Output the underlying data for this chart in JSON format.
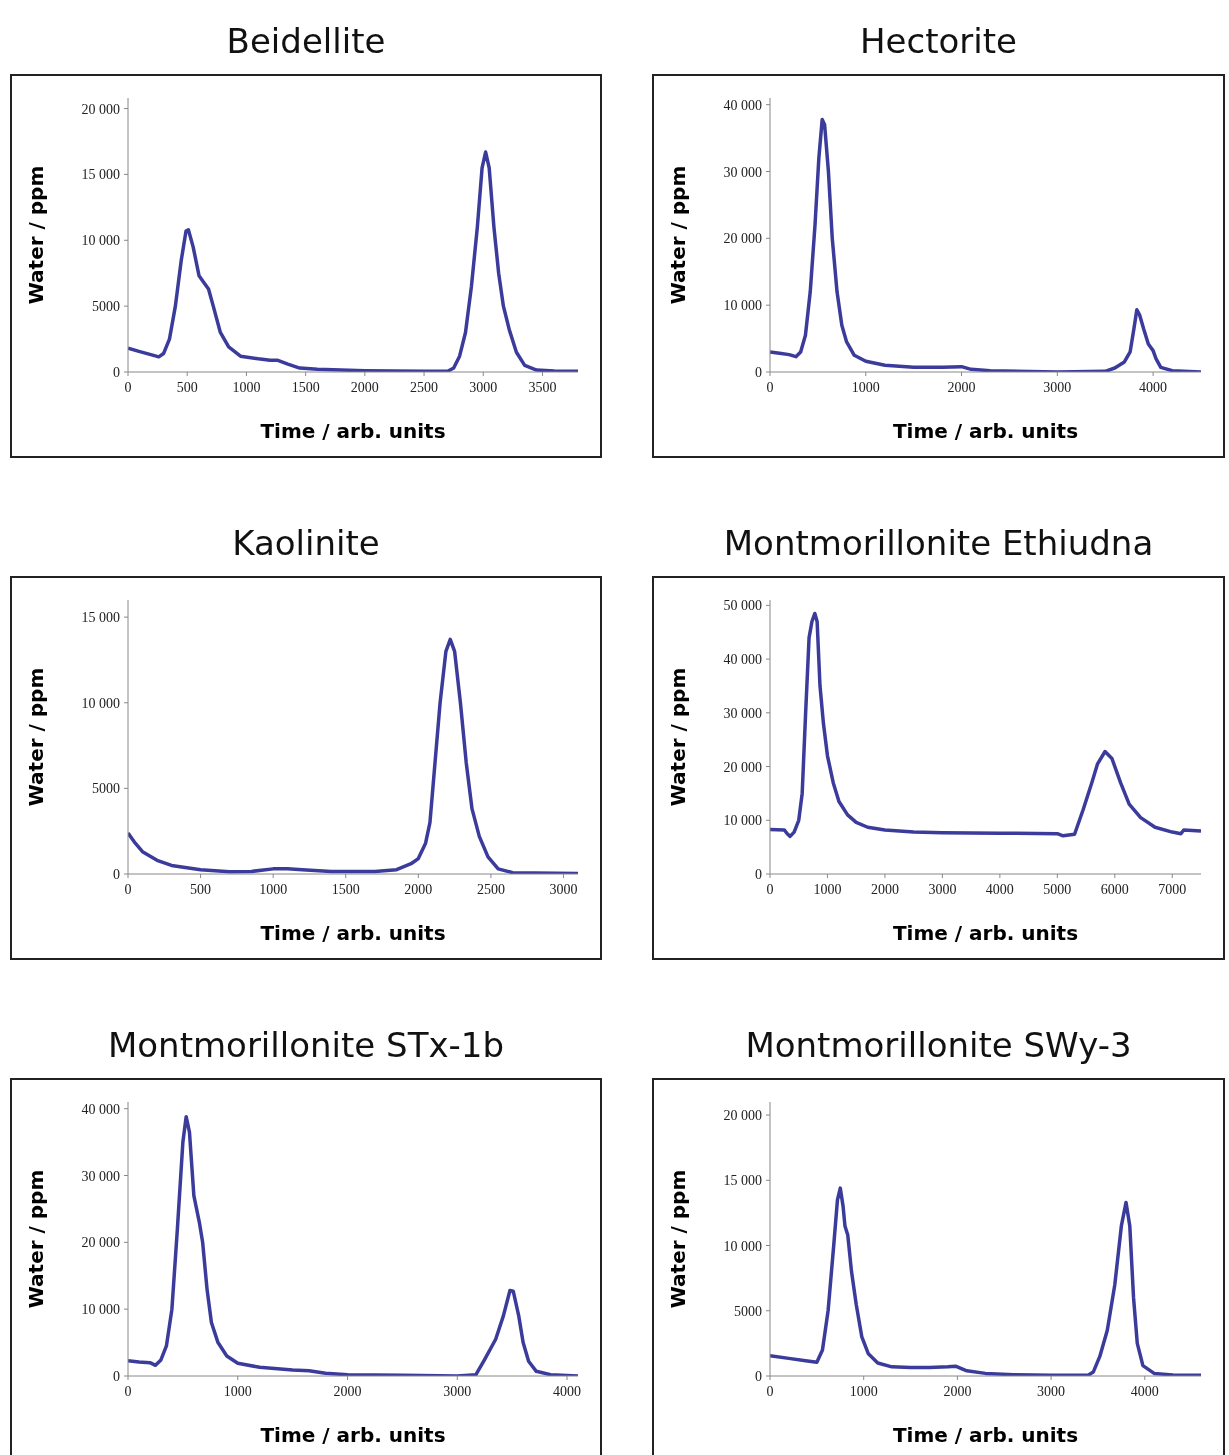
{
  "chart_data": [
    {
      "type": "line",
      "title": "Beidellite",
      "xlabel": "Time / arb. units",
      "ylabel": "Water / ppm",
      "color": "#3b3b9c",
      "xlim": [
        0,
        3800
      ],
      "ylim": [
        0,
        20800
      ],
      "xticks": [
        0,
        500,
        1000,
        1500,
        2000,
        2500,
        3000,
        3500
      ],
      "yticks": [
        {
          "value": 0,
          "label": "0"
        },
        {
          "value": 5000,
          "label": "5000"
        },
        {
          "value": 10000,
          "label": "10 000"
        },
        {
          "value": 15000,
          "label": "15 000"
        },
        {
          "value": 20000,
          "label": "20 000"
        }
      ],
      "x": [
        0,
        100,
        200,
        260,
        300,
        350,
        400,
        450,
        490,
        510,
        550,
        600,
        640,
        680,
        720,
        780,
        850,
        950,
        1100,
        1200,
        1260,
        1350,
        1450,
        1600,
        2000,
        2500,
        2700,
        2750,
        2800,
        2850,
        2900,
        2950,
        2990,
        3020,
        3050,
        3090,
        3130,
        3170,
        3220,
        3280,
        3350,
        3450,
        3600,
        3800
      ],
      "values": [
        1800,
        1550,
        1300,
        1150,
        1400,
        2500,
        5000,
        8500,
        10700,
        10800,
        9500,
        7300,
        6800,
        6300,
        5000,
        3000,
        1900,
        1200,
        1000,
        900,
        900,
        600,
        300,
        200,
        100,
        50,
        60,
        300,
        1200,
        3000,
        6500,
        11000,
        15500,
        16700,
        15500,
        11000,
        7500,
        5000,
        3200,
        1500,
        500,
        150,
        80,
        50
      ]
    },
    {
      "type": "line",
      "title": "Hectorite",
      "xlabel": "Time / arb. units",
      "ylabel": "Water / ppm",
      "color": "#3b3b9c",
      "xlim": [
        0,
        4500
      ],
      "ylim": [
        0,
        41000
      ],
      "xticks": [
        0,
        1000,
        2000,
        3000,
        4000
      ],
      "yticks": [
        {
          "value": 0,
          "label": "0"
        },
        {
          "value": 10000,
          "label": "10 000"
        },
        {
          "value": 20000,
          "label": "20 000"
        },
        {
          "value": 30000,
          "label": "30 000"
        },
        {
          "value": 40000,
          "label": "40 000"
        }
      ],
      "x": [
        0,
        100,
        200,
        270,
        320,
        370,
        420,
        470,
        510,
        545,
        570,
        610,
        650,
        700,
        750,
        800,
        880,
        1000,
        1200,
        1500,
        1800,
        2000,
        2100,
        2300,
        3000,
        3500,
        3600,
        3700,
        3760,
        3800,
        3830,
        3860,
        3900,
        3950,
        4000,
        4030,
        4080,
        4200,
        4500
      ],
      "values": [
        3000,
        2800,
        2600,
        2300,
        3000,
        5500,
        12000,
        22000,
        32000,
        37800,
        37000,
        30000,
        20000,
        12000,
        7000,
        4500,
        2500,
        1600,
        1000,
        700,
        700,
        800,
        400,
        200,
        0,
        100,
        600,
        1500,
        3000,
        6500,
        9300,
        8500,
        6500,
        4200,
        3200,
        2000,
        700,
        200,
        0
      ]
    },
    {
      "type": "line",
      "title": "Kaolinite",
      "xlabel": "Time / arb. units",
      "ylabel": "Water / ppm",
      "color": "#3b3b9c",
      "xlim": [
        0,
        3100
      ],
      "ylim": [
        0,
        16000
      ],
      "xticks": [
        0,
        500,
        1000,
        1500,
        2000,
        2500,
        3000
      ],
      "yticks": [
        {
          "value": 0,
          "label": "0"
        },
        {
          "value": 5000,
          "label": "5000"
        },
        {
          "value": 10000,
          "label": "10 000"
        },
        {
          "value": 15000,
          "label": "15 000"
        }
      ],
      "x": [
        0,
        50,
        100,
        200,
        300,
        500,
        700,
        850,
        1000,
        1100,
        1200,
        1400,
        1700,
        1850,
        1950,
        2000,
        2050,
        2080,
        2110,
        2150,
        2190,
        2220,
        2250,
        2290,
        2330,
        2370,
        2420,
        2480,
        2550,
        2650,
        3100
      ],
      "values": [
        2400,
        1800,
        1300,
        800,
        500,
        250,
        130,
        150,
        300,
        300,
        250,
        150,
        150,
        250,
        600,
        900,
        1800,
        3000,
        6000,
        10000,
        13000,
        13700,
        13000,
        10000,
        6500,
        3800,
        2200,
        1000,
        300,
        80,
        30
      ]
    },
    {
      "type": "line",
      "title": "Montmorillonite Ethiudna",
      "xlabel": "Time / arb. units",
      "ylabel": "Water / ppm",
      "color": "#3b3b9c",
      "xlim": [
        0,
        7500
      ],
      "ylim": [
        0,
        51000
      ],
      "xticks": [
        0,
        1000,
        2000,
        3000,
        4000,
        5000,
        6000,
        7000
      ],
      "yticks": [
        {
          "value": 0,
          "label": "0"
        },
        {
          "value": 10000,
          "label": "10 000"
        },
        {
          "value": 20000,
          "label": "20 000"
        },
        {
          "value": 30000,
          "label": "30 000"
        },
        {
          "value": 40000,
          "label": "40 000"
        },
        {
          "value": 50000,
          "label": "50 000"
        }
      ],
      "x": [
        0,
        250,
        300,
        350,
        420,
        500,
        560,
        620,
        680,
        730,
        780,
        820,
        870,
        930,
        1000,
        1100,
        1200,
        1350,
        1500,
        1700,
        2000,
        2500,
        3000,
        4000,
        5000,
        5100,
        5300,
        5450,
        5600,
        5700,
        5830,
        5950,
        6100,
        6250,
        6450,
        6700,
        7000,
        7150,
        7200,
        7500
      ],
      "values": [
        8300,
        8200,
        7500,
        7000,
        7800,
        10000,
        15000,
        30000,
        44000,
        47000,
        48500,
        47000,
        35000,
        28000,
        22000,
        17000,
        13500,
        11000,
        9600,
        8700,
        8200,
        7800,
        7700,
        7600,
        7500,
        7100,
        7400,
        12000,
        17000,
        20500,
        22800,
        21500,
        17000,
        13000,
        10500,
        8700,
        7800,
        7500,
        8200,
        8000
      ]
    },
    {
      "type": "line",
      "title": "Montmorillonite STx-1b",
      "xlabel": "Time / arb. units",
      "ylabel": "Water / ppm",
      "color": "#3b3b9c",
      "xlim": [
        0,
        4100
      ],
      "ylim": [
        0,
        41000
      ],
      "xticks": [
        0,
        1000,
        2000,
        3000,
        4000
      ],
      "yticks": [
        {
          "value": 0,
          "label": "0"
        },
        {
          "value": 10000,
          "label": "10 000"
        },
        {
          "value": 20000,
          "label": "20 000"
        },
        {
          "value": 30000,
          "label": "30 000"
        },
        {
          "value": 40000,
          "label": "40 000"
        }
      ],
      "x": [
        0,
        100,
        200,
        250,
        300,
        350,
        400,
        450,
        500,
        530,
        560,
        600,
        650,
        680,
        720,
        760,
        820,
        900,
        1000,
        1200,
        1500,
        1650,
        1800,
        2000,
        2500,
        3000,
        3170,
        3250,
        3350,
        3420,
        3480,
        3510,
        3560,
        3600,
        3650,
        3720,
        3850,
        4100
      ],
      "values": [
        2300,
        2100,
        2000,
        1600,
        2400,
        4500,
        10000,
        22000,
        35000,
        38800,
        36500,
        27000,
        23000,
        20000,
        13000,
        8000,
        5000,
        3000,
        1900,
        1300,
        900,
        800,
        400,
        200,
        100,
        0,
        200,
        2500,
        5500,
        9000,
        12800,
        12700,
        9000,
        5000,
        2200,
        700,
        200,
        0
      ]
    },
    {
      "type": "line",
      "title": "Montmorillonite SWy-3",
      "xlabel": "Time / arb. units",
      "ylabel": "Water / ppm",
      "color": "#3b3b9c",
      "xlim": [
        0,
        4600
      ],
      "ylim": [
        0,
        21000
      ],
      "xticks": [
        0,
        1000,
        2000,
        3000,
        4000
      ],
      "yticks": [
        {
          "value": 0,
          "label": "0"
        },
        {
          "value": 5000,
          "label": "5000"
        },
        {
          "value": 10000,
          "label": "10 000"
        },
        {
          "value": 15000,
          "label": "15 000"
        },
        {
          "value": 20000,
          "label": "20 000"
        }
      ],
      "x": [
        0,
        200,
        400,
        500,
        560,
        620,
        680,
        720,
        750,
        780,
        800,
        830,
        870,
        920,
        980,
        1050,
        1150,
        1300,
        1500,
        1700,
        1900,
        1980,
        2100,
        2300,
        2600,
        3000,
        3400,
        3450,
        3520,
        3600,
        3680,
        3750,
        3800,
        3840,
        3880,
        3920,
        3980,
        4100,
        4300,
        4600
      ],
      "values": [
        1550,
        1350,
        1150,
        1050,
        2000,
        5000,
        10000,
        13500,
        14400,
        13000,
        11500,
        10800,
        8000,
        5500,
        3000,
        1700,
        1000,
        700,
        650,
        650,
        700,
        750,
        400,
        200,
        100,
        50,
        80,
        300,
        1500,
        3500,
        7000,
        11500,
        13300,
        11500,
        6000,
        2500,
        800,
        200,
        80,
        50
      ]
    }
  ]
}
